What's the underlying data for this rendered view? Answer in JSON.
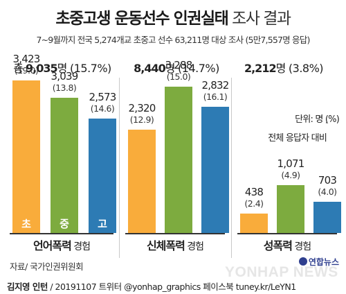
{
  "header": {
    "title_strong": "초중고생 운동선수 인권실태",
    "title_light": "조사 결과",
    "subtitle": "7~9월까지 전국 5,274개교 초중고 선수 63,211명 대상 조사 (5만7,557명 응답)"
  },
  "totals": [
    {
      "prefix": "총 ",
      "num": "9,035",
      "unit": "명",
      "pct": " (15.7%)"
    },
    {
      "prefix": "",
      "num": "8,440",
      "unit": "명",
      "pct": " (14.7%)"
    },
    {
      "prefix": "",
      "num": "2,212",
      "unit": "명",
      "pct": " (3.8%)"
    }
  ],
  "categories": [
    {
      "bold": "언어폭력",
      "normal": " 경험"
    },
    {
      "bold": "신체폭력",
      "normal": " 경험"
    },
    {
      "bold": "성폭력",
      "normal": " 경험"
    }
  ],
  "bars": [
    [
      {
        "label": "3,423",
        "pct": "(19.0)",
        "inner": "초"
      },
      {
        "label": "3,039",
        "pct": "(13.8)",
        "inner": "중"
      },
      {
        "label": "2,573",
        "pct": "(14.6)",
        "inner": "고"
      }
    ],
    [
      {
        "label": "2,320",
        "pct": "(12.9)"
      },
      {
        "label": "3,288",
        "pct": "(15.0)"
      },
      {
        "label": "2,832",
        "pct": "(16.1)"
      }
    ],
    [
      {
        "label": "438",
        "pct": "(2.4)"
      },
      {
        "label": "1,071",
        "pct": "(4.9)"
      },
      {
        "label": "703",
        "pct": "(4.0)"
      }
    ]
  ],
  "legend": {
    "unit": "단위: 명 (%)",
    "note": "전체 응답자 대비"
  },
  "source": "자료/ 국가인권위원회",
  "footer": {
    "author": "김지영 인턴",
    "rest": " / 20191107  트위터 @yonhap_graphics  페이스북 tuney.kr/LeYN1"
  },
  "watermark": {
    "logo": "연합뉴스",
    "text": "YONHAP NEWS"
  },
  "colors": {
    "elementary": "#f9ac3b",
    "middle": "#7dab3f",
    "high": "#2d7bb4"
  },
  "chart_data": {
    "type": "bar",
    "title": "초중고생 운동선수 인권실태 조사 결과",
    "groups": [
      "언어폭력 경험",
      "신체폭력 경험",
      "성폭력 경험"
    ],
    "series": [
      {
        "name": "초",
        "values": [
          3423,
          2320,
          438
        ],
        "percent": [
          19.0,
          12.9,
          2.4
        ]
      },
      {
        "name": "중",
        "values": [
          3039,
          3288,
          1071
        ],
        "percent": [
          13.8,
          15.0,
          4.9
        ]
      },
      {
        "name": "고",
        "values": [
          2573,
          2832,
          703
        ],
        "percent": [
          14.6,
          16.1,
          4.0
        ]
      }
    ],
    "totals": [
      9035,
      8440,
      2212
    ],
    "total_percent": [
      15.7,
      14.7,
      3.8
    ],
    "unit": "명 (%)",
    "ylim": [
      0,
      3500
    ]
  }
}
